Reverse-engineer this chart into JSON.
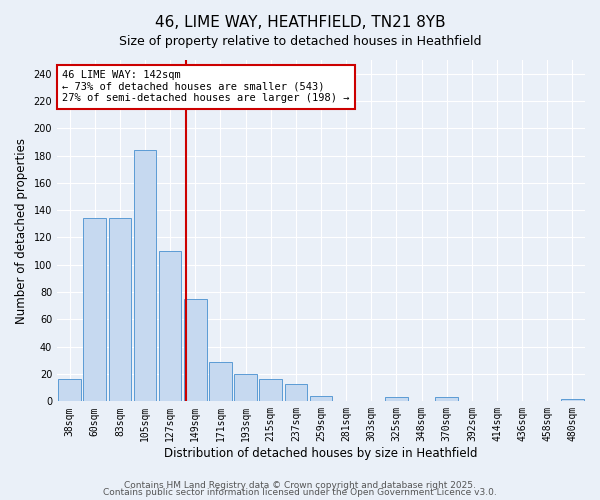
{
  "title": "46, LIME WAY, HEATHFIELD, TN21 8YB",
  "subtitle": "Size of property relative to detached houses in Heathfield",
  "xlabel": "Distribution of detached houses by size in Heathfield",
  "ylabel": "Number of detached properties",
  "bin_labels": [
    "38sqm",
    "60sqm",
    "83sqm",
    "105sqm",
    "127sqm",
    "149sqm",
    "171sqm",
    "193sqm",
    "215sqm",
    "237sqm",
    "259sqm",
    "281sqm",
    "303sqm",
    "325sqm",
    "348sqm",
    "370sqm",
    "392sqm",
    "414sqm",
    "436sqm",
    "458sqm",
    "480sqm"
  ],
  "bar_heights": [
    16,
    134,
    134,
    184,
    110,
    75,
    29,
    20,
    16,
    13,
    4,
    0,
    0,
    3,
    0,
    3,
    0,
    0,
    0,
    0,
    2
  ],
  "bar_color": "#c6d9f0",
  "bar_edgecolor": "#5b9bd5",
  "vline_x_index": 4.636,
  "vline_color": "#cc0000",
  "annotation_title": "46 LIME WAY: 142sqm",
  "annotation_line1": "← 73% of detached houses are smaller (543)",
  "annotation_line2": "27% of semi-detached houses are larger (198) →",
  "annotation_box_color": "#ffffff",
  "annotation_box_edgecolor": "#cc0000",
  "ylim": [
    0,
    250
  ],
  "yticks": [
    0,
    20,
    40,
    60,
    80,
    100,
    120,
    140,
    160,
    180,
    200,
    220,
    240
  ],
  "footer1": "Contains HM Land Registry data © Crown copyright and database right 2025.",
  "footer2": "Contains public sector information licensed under the Open Government Licence v3.0.",
  "background_color": "#eaf0f8",
  "grid_color": "#ffffff",
  "title_fontsize": 11,
  "subtitle_fontsize": 9,
  "axis_label_fontsize": 8.5,
  "tick_fontsize": 7,
  "annotation_fontsize": 7.5,
  "footer_fontsize": 6.5
}
